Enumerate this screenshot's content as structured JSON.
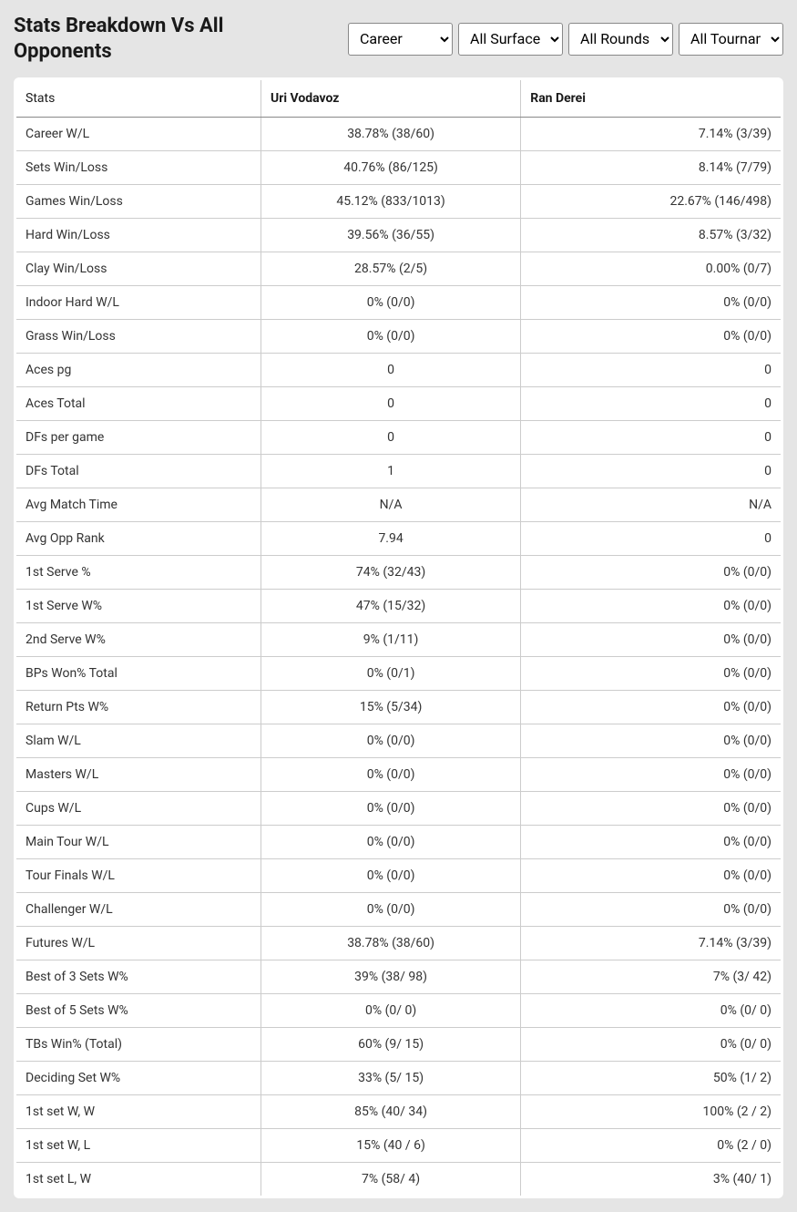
{
  "header": {
    "title": "Stats Breakdown Vs All Opponents"
  },
  "filters": {
    "period": {
      "selected": "Career",
      "options": [
        "Career"
      ]
    },
    "surface": {
      "selected": "All Surfaces",
      "options": [
        "All Surfaces"
      ]
    },
    "round": {
      "selected": "All Rounds",
      "options": [
        "All Rounds"
      ]
    },
    "tournament": {
      "selected": "All Tournaments",
      "options": [
        "All Tournaments"
      ]
    }
  },
  "table": {
    "columns": [
      "Stats",
      "Uri Vodavoz",
      "Ran Derei"
    ],
    "rows": [
      [
        "Career W/L",
        "38.78% (38/60)",
        "7.14% (3/39)"
      ],
      [
        "Sets Win/Loss",
        "40.76% (86/125)",
        "8.14% (7/79)"
      ],
      [
        "Games Win/Loss",
        "45.12% (833/1013)",
        "22.67% (146/498)"
      ],
      [
        "Hard Win/Loss",
        "39.56% (36/55)",
        "8.57% (3/32)"
      ],
      [
        "Clay Win/Loss",
        "28.57% (2/5)",
        "0.00% (0/7)"
      ],
      [
        "Indoor Hard W/L",
        "0% (0/0)",
        "0% (0/0)"
      ],
      [
        "Grass Win/Loss",
        "0% (0/0)",
        "0% (0/0)"
      ],
      [
        "Aces pg",
        "0",
        "0"
      ],
      [
        "Aces Total",
        "0",
        "0"
      ],
      [
        "DFs per game",
        "0",
        "0"
      ],
      [
        "DFs Total",
        "1",
        "0"
      ],
      [
        "Avg Match Time",
        "N/A",
        "N/A"
      ],
      [
        "Avg Opp Rank",
        "7.94",
        "0"
      ],
      [
        "1st Serve %",
        "74% (32/43)",
        "0% (0/0)"
      ],
      [
        "1st Serve W%",
        "47% (15/32)",
        "0% (0/0)"
      ],
      [
        "2nd Serve W%",
        "9% (1/11)",
        "0% (0/0)"
      ],
      [
        "BPs Won% Total",
        "0% (0/1)",
        "0% (0/0)"
      ],
      [
        "Return Pts W%",
        "15% (5/34)",
        "0% (0/0)"
      ],
      [
        "Slam W/L",
        "0% (0/0)",
        "0% (0/0)"
      ],
      [
        "Masters W/L",
        "0% (0/0)",
        "0% (0/0)"
      ],
      [
        "Cups W/L",
        "0% (0/0)",
        "0% (0/0)"
      ],
      [
        "Main Tour W/L",
        "0% (0/0)",
        "0% (0/0)"
      ],
      [
        "Tour Finals W/L",
        "0% (0/0)",
        "0% (0/0)"
      ],
      [
        "Challenger W/L",
        "0% (0/0)",
        "0% (0/0)"
      ],
      [
        "Futures W/L",
        "38.78% (38/60)",
        "7.14% (3/39)"
      ],
      [
        "Best of 3 Sets W%",
        "39% (38/ 98)",
        "7% (3/ 42)"
      ],
      [
        "Best of 5 Sets W%",
        "0% (0/ 0)",
        "0% (0/ 0)"
      ],
      [
        "TBs Win% (Total)",
        "60% (9/ 15)",
        "0% (0/ 0)"
      ],
      [
        "Deciding Set W%",
        "33% (5/ 15)",
        "50% (1/ 2)"
      ],
      [
        "1st set W, W",
        "85% (40/ 34)",
        "100% (2 / 2)"
      ],
      [
        "1st set W, L",
        "15% (40 / 6)",
        "0% (2 / 0)"
      ],
      [
        "1st set L, W",
        "7% (58/ 4)",
        "3% (40/ 1)"
      ]
    ]
  },
  "styling": {
    "background_color": "#e5e5e5",
    "table_background": "#ffffff",
    "border_color": "#cccccc",
    "header_border_color": "#888888",
    "text_color": "#333333",
    "title_color": "#1a1a1a",
    "title_fontsize": 22,
    "body_fontsize": 14
  }
}
